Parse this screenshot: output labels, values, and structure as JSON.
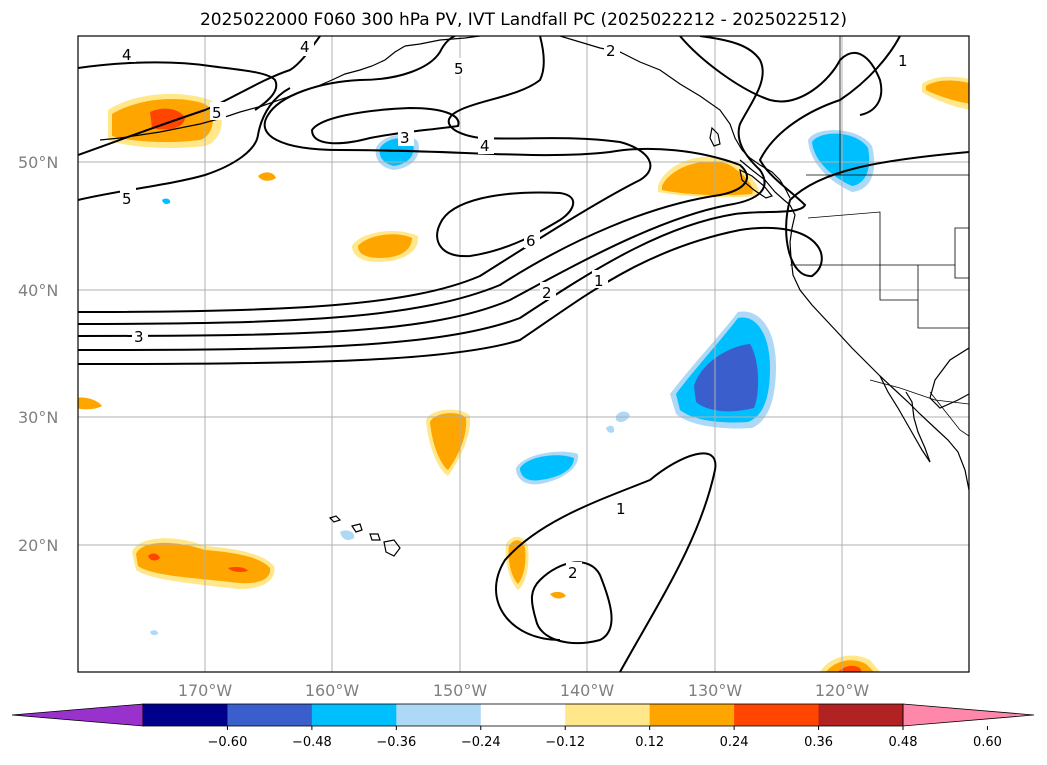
{
  "title": "2025022000 F060 300 hPa PV, IVT Landfall PC (2025022212 - 2025022512)",
  "map": {
    "lat_labels": [
      "50°N",
      "40°N",
      "30°N",
      "20°N"
    ],
    "lon_labels": [
      "170°W",
      "160°W",
      "150°W",
      "140°W",
      "130°W",
      "120°W"
    ],
    "lon_range": [
      180,
      110
    ],
    "lat_range": [
      10,
      60
    ],
    "gridlines": true,
    "contour_color": "#000000",
    "contours": [
      {
        "level": "1"
      },
      {
        "level": "2"
      },
      {
        "level": "3"
      },
      {
        "level": "4"
      },
      {
        "level": "5"
      },
      {
        "level": "6"
      }
    ],
    "contour_label_texts": [
      "4",
      "4",
      "5",
      "5",
      "3",
      "4",
      "5",
      "6",
      "2",
      "1",
      "3",
      "1",
      "2",
      "1",
      "2"
    ]
  },
  "colorbar": {
    "ticks": [
      "−0.60",
      "−0.48",
      "−0.36",
      "−0.24",
      "−0.12",
      "0.12",
      "0.24",
      "0.36",
      "0.48",
      "0.60"
    ],
    "colors": [
      "#9932cc",
      "#00008b",
      "#3a5fcd",
      "#00bfff",
      "#add8f6",
      "#ffffff",
      "#ffe78a",
      "#ffa500",
      "#ff4500",
      "#b22222",
      "#ff88aa"
    ]
  }
}
